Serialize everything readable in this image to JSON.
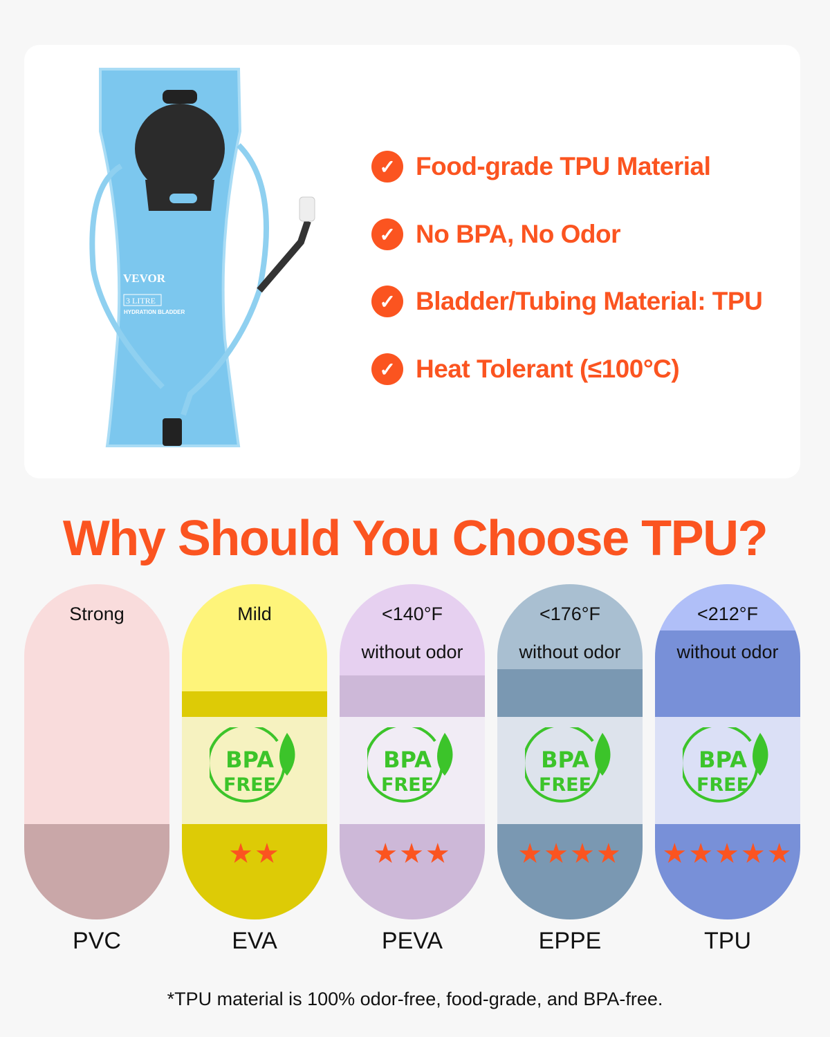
{
  "product": {
    "brand": "VEVOR",
    "capacity": "3 LITRE",
    "name": "HYDRATION BLADDER"
  },
  "features": [
    "Food-grade TPU Material",
    "No BPA, No Odor",
    "Bladder/Tubing Material: TPU",
    "Heat Tolerant (≤100°C)"
  ],
  "check_icon": "check-circle-icon",
  "title": "Why Should You Choose TPU?",
  "materials": [
    {
      "name": "PVC",
      "odor": "Strong",
      "temp": "",
      "stars": "",
      "rating": 0,
      "bpa_free": false,
      "colors": [
        "#f9dcdc",
        "#f9dcdc",
        "#f9dcdc",
        "#c9a7a8"
      ]
    },
    {
      "name": "EVA",
      "odor": "Mild",
      "temp": "",
      "stars": "★★",
      "rating": 2,
      "bpa_free": true,
      "colors": [
        "#fef47a",
        "#ddcb06",
        "#f6f2c0",
        "#ddcb06"
      ]
    },
    {
      "name": "PEVA",
      "odor": "without odor",
      "temp": "<140°F",
      "stars": "★★★",
      "rating": 3,
      "bpa_free": true,
      "colors": [
        "#e6d0f0",
        "#cdb8d8",
        "#f1ecf5",
        "#cdb8d8"
      ]
    },
    {
      "name": "EPPE",
      "odor": "without odor",
      "temp": "<176°F",
      "stars": "★★★★",
      "rating": 4,
      "bpa_free": true,
      "colors": [
        "#a9bfd1",
        "#7a98b2",
        "#dde3ec",
        "#7a98b2"
      ]
    },
    {
      "name": "TPU",
      "odor": "without odor",
      "temp": "<212°F",
      "stars": "★★★★★",
      "rating": 5,
      "bpa_free": true,
      "colors": [
        "#b0bff8",
        "#7890d8",
        "#dbe0f6",
        "#7890d8"
      ]
    }
  ],
  "bpa": {
    "line1": "BPA",
    "line2": "FREE"
  },
  "accent": "#fb5420",
  "footnote": "*TPU material is 100% odor-free, food-grade, and BPA-free."
}
